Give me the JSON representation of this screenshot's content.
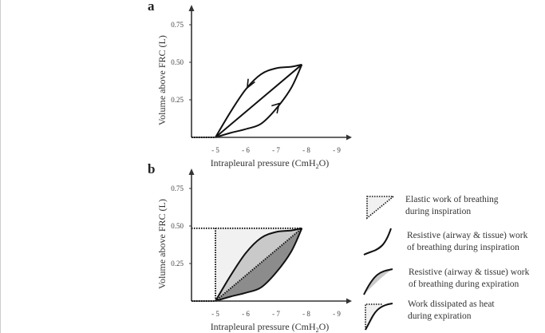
{
  "panels": [
    {
      "label": "a",
      "xlabel": "Intrapleural pressure (CmH",
      "xlabel_sub": "2",
      "xlabel_end": "O)",
      "ylabel": "Volume above FRC (L)",
      "x_ticks": [
        "- 5",
        "- 6",
        "- 7",
        "- 8",
        "- 9"
      ],
      "y_ticks": [
        "0.25",
        "0.50",
        "0.75"
      ]
    },
    {
      "label": "b",
      "xlabel": "Intrapleural pressure (CmH",
      "xlabel_sub": "2",
      "xlabel_end": "O)",
      "ylabel": "Volume above FRC (L)",
      "x_ticks": [
        "- 5",
        "- 6",
        "- 7",
        "- 8",
        "- 9"
      ],
      "y_ticks": [
        "0.25",
        "0.50",
        "0.75"
      ]
    }
  ],
  "curves": {
    "expiration_upper": [
      [
        -5,
        0
      ],
      [
        -5.5,
        0.17
      ],
      [
        -6,
        0.32
      ],
      [
        -6.5,
        0.42
      ],
      [
        -7,
        0.46
      ],
      [
        -7.5,
        0.47
      ],
      [
        -7.85,
        0.485
      ]
    ],
    "inspiration_lower": [
      [
        -5,
        0
      ],
      [
        -5.5,
        0.03
      ],
      [
        -6,
        0.055
      ],
      [
        -6.5,
        0.09
      ],
      [
        -7,
        0.19
      ],
      [
        -7.5,
        0.33
      ],
      [
        -7.85,
        0.485
      ]
    ],
    "end_point": [
      -7.85,
      0.485
    ]
  },
  "colors": {
    "elastic": "#f1f1f1",
    "resistive_expiration": "#c9c9c9",
    "resistive_inspiration": "#8c8c8c",
    "line": "#111111"
  },
  "legend": [
    {
      "line1": "Elastic work of breathing",
      "line2": "during inspiration"
    },
    {
      "line1": "Resistive (airway & tissue) work",
      "line2": "of breathing during inspiration"
    },
    {
      "line1": "Resistive (airway & tissue) work",
      "line2": "of breathing during expiration"
    },
    {
      "line1": "Work dissipated as heat",
      "line2": "during expiration"
    }
  ]
}
